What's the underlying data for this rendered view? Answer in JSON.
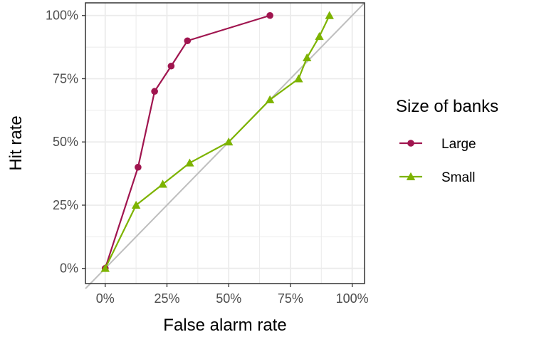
{
  "chart_data": {
    "type": "line",
    "xlabel": "False alarm rate",
    "ylabel": "Hit rate",
    "xlim": [
      -0.08,
      1.05
    ],
    "ylim": [
      -0.06,
      1.05
    ],
    "x_ticks": [
      0,
      0.25,
      0.5,
      0.75,
      1.0
    ],
    "x_tick_labels": [
      "0%",
      "25%",
      "50%",
      "75%",
      "100%"
    ],
    "y_ticks": [
      0,
      0.25,
      0.5,
      0.75,
      1.0
    ],
    "y_tick_labels": [
      "0%",
      "25%",
      "50%",
      "75%",
      "100%"
    ],
    "grid": true,
    "legend": {
      "title": "Size of banks",
      "position": "right"
    },
    "reference_line": {
      "x": [
        -0.08,
        1.05
      ],
      "y": [
        -0.08,
        1.05
      ],
      "color": "#bebebe"
    },
    "series": [
      {
        "name": "Large",
        "color": "#a0154f",
        "marker": "circle",
        "x": [
          0,
          0.133,
          0.2,
          0.267,
          0.333,
          0.667
        ],
        "y": [
          0,
          0.4,
          0.7,
          0.8,
          0.9,
          1.0
        ]
      },
      {
        "name": "Small",
        "color": "#7db300",
        "marker": "triangle",
        "x": [
          0,
          0.125,
          0.233,
          0.342,
          0.5,
          0.667,
          0.783,
          0.817,
          0.867,
          0.908
        ],
        "y": [
          0,
          0.25,
          0.333,
          0.417,
          0.5,
          0.667,
          0.75,
          0.833,
          0.917,
          1.0
        ]
      }
    ]
  }
}
